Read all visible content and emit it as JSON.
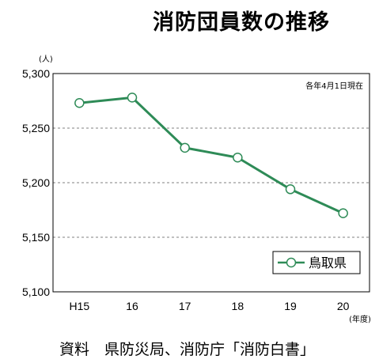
{
  "chart_data": {
    "type": "line",
    "title": "消防団員数の推移",
    "y_unit_label": "(人)",
    "x_unit_label": "(年度)",
    "note": "各年4月1日現在",
    "source": "資料　県防災局、消防庁「消防白書」",
    "categories": [
      "H15",
      "16",
      "17",
      "18",
      "19",
      "20"
    ],
    "ylim": [
      5100,
      5300
    ],
    "yticks": [
      5100,
      5150,
      5200,
      5250,
      5300
    ],
    "ytick_labels": [
      "5,100",
      "5,150",
      "5,200",
      "5,250",
      "5,300"
    ],
    "grid": "horizontal dashed",
    "legend_position": "bottom-right",
    "series": [
      {
        "name": "鳥取県",
        "color": "#2e8b57",
        "marker": "open-circle",
        "values": [
          5273,
          5278,
          5232,
          5223,
          5194,
          5172
        ]
      }
    ]
  }
}
